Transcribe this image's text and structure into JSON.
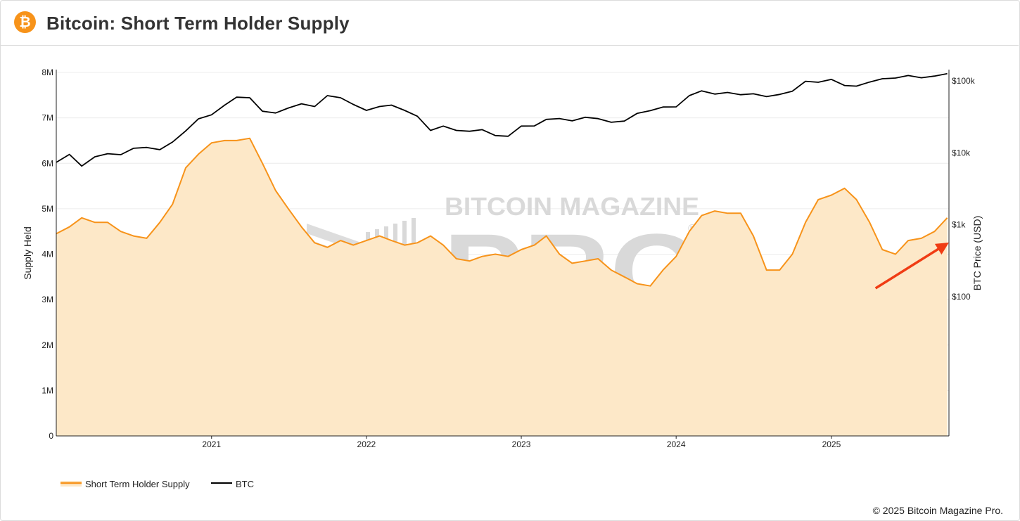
{
  "header": {
    "logo_symbol": "₿",
    "title": "Bitcoin: Short Term Holder Supply"
  },
  "watermark": {
    "line1": "BITCOIN MAGAZINE",
    "line2": "PRO",
    "registered": "®"
  },
  "footer": {
    "copyright": "© 2025 Bitcoin Magazine Pro."
  },
  "colors": {
    "supply_line": "#f7931a",
    "supply_fill": "#fde8c8",
    "btc_line": "#000000",
    "arrow": "#f03c14",
    "grid": "#ececec",
    "watermark": "#d9d9d9"
  },
  "icons": {
    "logo": "bitcoin-logo-icon",
    "annotation": "trend-arrow-icon"
  },
  "chart_data": {
    "type": "line",
    "legend_placement": "bottom-left",
    "grid": true,
    "x_axis": {
      "type": "date",
      "range": [
        "2020-01-01",
        "2025-10-05"
      ],
      "ticks": [
        "2021",
        "2022",
        "2023",
        "2024",
        "2025"
      ]
    },
    "y_axis_left": {
      "label": "Supply Held",
      "range": [
        0,
        8000000
      ],
      "ticks": [
        "0",
        "1M",
        "2M",
        "3M",
        "4M",
        "5M",
        "6M",
        "7M",
        "8M"
      ]
    },
    "y_axis_right": {
      "label": "BTC Price (USD)",
      "scale": "log",
      "ticks": [
        "$100",
        "$1k",
        "$10k",
        "$100k"
      ],
      "tick_values": [
        100,
        1000,
        10000,
        100000
      ]
    },
    "series": [
      {
        "name": "Short Term Holder Supply",
        "axis": "left",
        "style": "area",
        "x": [
          "2020-01-01",
          "2020-02-01",
          "2020-03-01",
          "2020-04-01",
          "2020-05-01",
          "2020-06-01",
          "2020-07-01",
          "2020-08-01",
          "2020-09-01",
          "2020-10-01",
          "2020-11-01",
          "2020-12-01",
          "2021-01-01",
          "2021-02-01",
          "2021-03-01",
          "2021-04-01",
          "2021-05-01",
          "2021-06-01",
          "2021-07-01",
          "2021-08-01",
          "2021-09-01",
          "2021-10-01",
          "2021-11-01",
          "2021-12-01",
          "2022-01-01",
          "2022-02-01",
          "2022-03-01",
          "2022-04-01",
          "2022-05-01",
          "2022-06-01",
          "2022-07-01",
          "2022-08-01",
          "2022-09-01",
          "2022-10-01",
          "2022-11-01",
          "2022-12-01",
          "2023-01-01",
          "2023-02-01",
          "2023-03-01",
          "2023-04-01",
          "2023-05-01",
          "2023-06-01",
          "2023-07-01",
          "2023-08-01",
          "2023-09-01",
          "2023-10-01",
          "2023-11-01",
          "2023-12-01",
          "2024-01-01",
          "2024-02-01",
          "2024-03-01",
          "2024-04-01",
          "2024-05-01",
          "2024-06-01",
          "2024-07-01",
          "2024-08-01",
          "2024-09-01",
          "2024-10-01",
          "2024-11-01",
          "2024-12-01",
          "2025-01-01",
          "2025-02-01",
          "2025-03-01",
          "2025-04-01",
          "2025-05-01",
          "2025-06-01",
          "2025-07-01",
          "2025-08-01",
          "2025-09-01",
          "2025-10-01"
        ],
        "values": [
          4450000,
          4600000,
          4800000,
          4700000,
          4700000,
          4500000,
          4400000,
          4350000,
          4700000,
          5100000,
          5900000,
          6200000,
          6450000,
          6500000,
          6500000,
          6550000,
          6000000,
          5400000,
          5000000,
          4600000,
          4250000,
          4150000,
          4300000,
          4200000,
          4300000,
          4400000,
          4300000,
          4200000,
          4250000,
          4400000,
          4200000,
          3900000,
          3850000,
          3950000,
          4000000,
          3950000,
          4100000,
          4200000,
          4400000,
          4000000,
          3800000,
          3850000,
          3900000,
          3650000,
          3500000,
          3350000,
          3300000,
          3650000,
          3950000,
          4500000,
          4850000,
          4950000,
          4900000,
          4900000,
          4400000,
          3650000,
          3650000,
          4000000,
          4700000,
          5200000,
          5300000,
          5450000,
          5200000,
          4700000,
          4100000,
          4000000,
          4300000,
          4350000,
          4500000,
          4800000
        ]
      },
      {
        "name": "BTC",
        "axis": "right",
        "style": "line",
        "x": [
          "2020-01-01",
          "2020-02-01",
          "2020-03-01",
          "2020-04-01",
          "2020-05-01",
          "2020-06-01",
          "2020-07-01",
          "2020-08-01",
          "2020-09-01",
          "2020-10-01",
          "2020-11-01",
          "2020-12-01",
          "2021-01-01",
          "2021-02-01",
          "2021-03-01",
          "2021-04-01",
          "2021-05-01",
          "2021-06-01",
          "2021-07-01",
          "2021-08-01",
          "2021-09-01",
          "2021-10-01",
          "2021-11-01",
          "2021-12-01",
          "2022-01-01",
          "2022-02-01",
          "2022-03-01",
          "2022-04-01",
          "2022-05-01",
          "2022-06-01",
          "2022-07-01",
          "2022-08-01",
          "2022-09-01",
          "2022-10-01",
          "2022-11-01",
          "2022-12-01",
          "2023-01-01",
          "2023-02-01",
          "2023-03-01",
          "2023-04-01",
          "2023-05-01",
          "2023-06-01",
          "2023-07-01",
          "2023-08-01",
          "2023-09-01",
          "2023-10-01",
          "2023-11-01",
          "2023-12-01",
          "2024-01-01",
          "2024-02-01",
          "2024-03-01",
          "2024-04-01",
          "2024-05-01",
          "2024-06-01",
          "2024-07-01",
          "2024-08-01",
          "2024-09-01",
          "2024-10-01",
          "2024-11-01",
          "2024-12-01",
          "2025-01-01",
          "2025-02-01",
          "2025-03-01",
          "2025-04-01",
          "2025-05-01",
          "2025-06-01",
          "2025-07-01",
          "2025-08-01",
          "2025-09-01",
          "2025-10-01"
        ],
        "values": [
          7200,
          9300,
          6400,
          8600,
          9500,
          9200,
          11300,
          11600,
          10800,
          13800,
          19700,
          29000,
          33000,
          45000,
          58000,
          57000,
          37000,
          35000,
          41000,
          47000,
          43000,
          61000,
          57000,
          46000,
          38000,
          43000,
          45000,
          38000,
          31500,
          20000,
          23000,
          20000,
          19500,
          20500,
          17000,
          16600,
          23000,
          23100,
          28500,
          29300,
          27200,
          30500,
          29200,
          26000,
          27000,
          34500,
          37700,
          42300,
          42500,
          61000,
          71000,
          64000,
          67500,
          62700,
          64600,
          59000,
          63300,
          70200,
          96400,
          93400,
          102400,
          84300,
          82500,
          94200,
          104600,
          107100,
          116000,
          108000,
          114000,
          123000
        ]
      }
    ],
    "annotations": [
      {
        "type": "arrow",
        "from": "2025-04-15",
        "to": "2025-09-15",
        "meaning": "rising Short Term Holder Supply"
      }
    ]
  }
}
